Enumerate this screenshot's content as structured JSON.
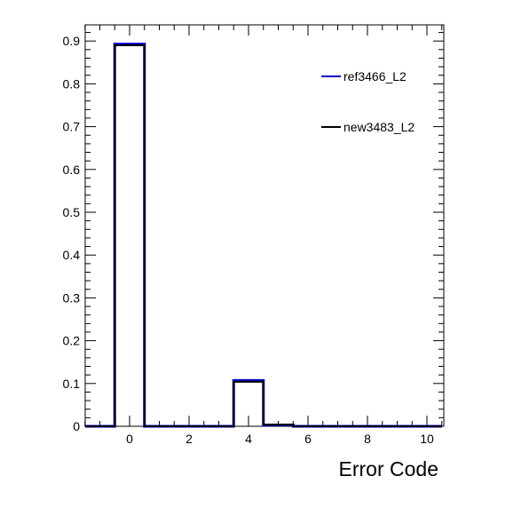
{
  "chart_data": {
    "type": "bar",
    "style": "step-histogram",
    "title": "",
    "xlabel": "Error Code",
    "ylabel": "",
    "xlim": [
      -1.5,
      10.5
    ],
    "ylim": [
      0,
      0.93
    ],
    "bin_width": 1,
    "x_ticks": [
      0,
      2,
      4,
      6,
      8,
      10
    ],
    "y_ticks": [
      0,
      0.1,
      0.2,
      0.3,
      0.4,
      0.5,
      0.6,
      0.7,
      0.8,
      0.9
    ],
    "y_tick_labels": [
      "0",
      "0.1",
      "0.2",
      "0.3",
      "0.4",
      "0.5",
      "0.6",
      "0.7",
      "0.8",
      "0.9"
    ],
    "grid": false,
    "legend_position": "top-right",
    "categories": [
      -1,
      0,
      1,
      2,
      3,
      4,
      5,
      6,
      7,
      8,
      9,
      10
    ],
    "series": [
      {
        "name": "ref3466_L2",
        "color": "#0000cc",
        "values": [
          0,
          0.893,
          0,
          0,
          0,
          0.107,
          0.003,
          0,
          0,
          0,
          0,
          0
        ]
      },
      {
        "name": "new3483_L2",
        "color": "#000000",
        "values": [
          0,
          0.89,
          0,
          0,
          0,
          0.104,
          0.004,
          0,
          0,
          0,
          0,
          0
        ]
      }
    ]
  }
}
